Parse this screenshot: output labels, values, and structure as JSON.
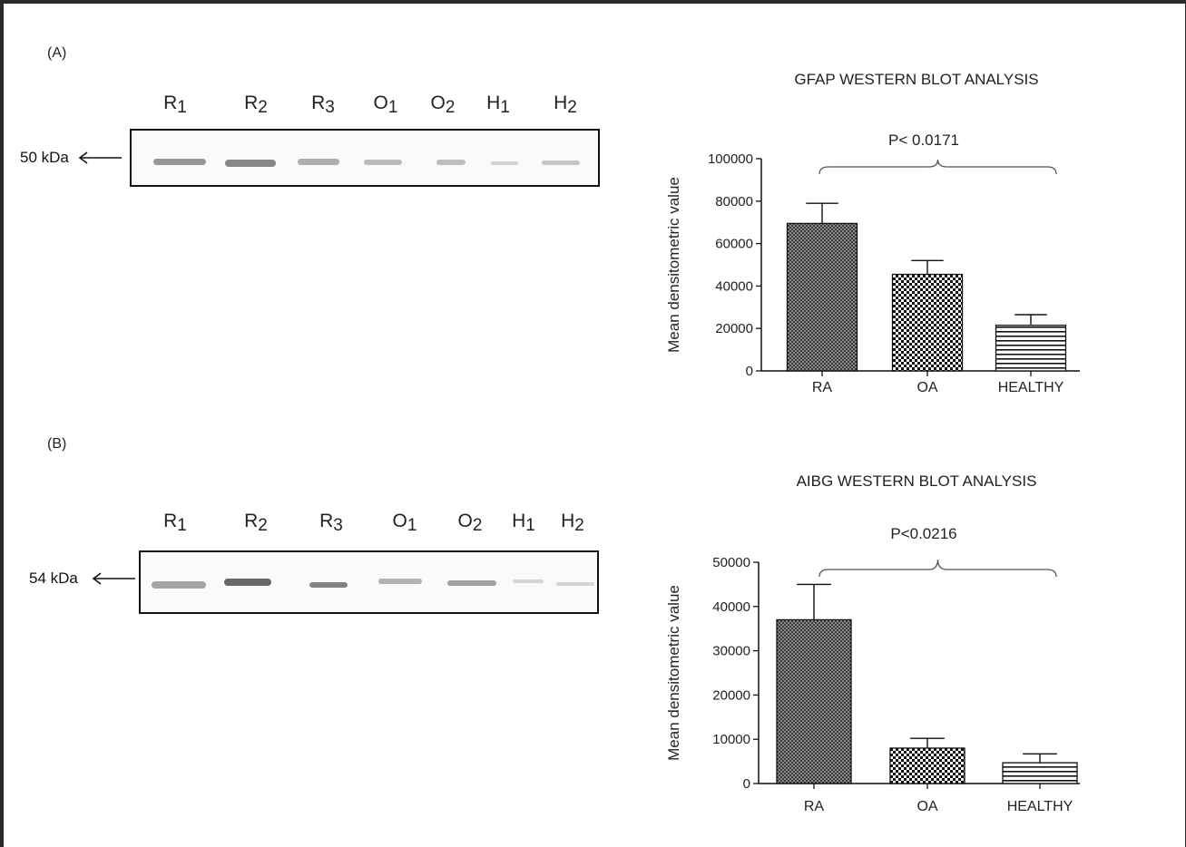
{
  "panels": [
    {
      "label": "(A)",
      "blot": {
        "kda_label": "50 kDa",
        "lanes": [
          {
            "base": "R",
            "sub": "1"
          },
          {
            "base": "R",
            "sub": "2"
          },
          {
            "base": "R",
            "sub": "3"
          },
          {
            "base": "O",
            "sub": "1"
          },
          {
            "base": "O",
            "sub": "2"
          },
          {
            "base": "H",
            "sub": "1"
          },
          {
            "base": "H",
            "sub": "2"
          }
        ]
      }
    },
    {
      "label": "(B)",
      "blot": {
        "kda_label": "54 kDa",
        "lanes": [
          {
            "base": "R",
            "sub": "1"
          },
          {
            "base": "R",
            "sub": "2"
          },
          {
            "base": "R",
            "sub": "3"
          },
          {
            "base": "O",
            "sub": "1"
          },
          {
            "base": "O",
            "sub": "2"
          },
          {
            "base": "H",
            "sub": "1"
          },
          {
            "base": "H",
            "sub": "2"
          }
        ]
      }
    }
  ],
  "chart_data": [
    {
      "type": "bar",
      "title": "GFAP WESTERN BLOT ANALYSIS",
      "xlabel": "",
      "ylabel": "Mean densitometric value",
      "categories": [
        "RA",
        "OA",
        "HEALTHY"
      ],
      "values": [
        69500,
        45500,
        21500
      ],
      "error_bars": [
        9500,
        6500,
        5000
      ],
      "ylim": [
        0,
        100000
      ],
      "yticks": [
        "0",
        "20000",
        "40000",
        "60000",
        "80000",
        "100000"
      ],
      "annotation": "P< 0.0171"
    },
    {
      "type": "bar",
      "title": "AIBG WESTERN BLOT ANALYSIS",
      "xlabel": "",
      "ylabel": "Mean densitometric value",
      "categories": [
        "RA",
        "OA",
        "HEALTHY"
      ],
      "values": [
        37000,
        8000,
        4700
      ],
      "error_bars": [
        8000,
        2200,
        2000
      ],
      "ylim": [
        0,
        50000
      ],
      "yticks": [
        "0",
        "10000",
        "20000",
        "30000",
        "40000",
        "50000"
      ],
      "annotation": "P<0.0216"
    }
  ]
}
